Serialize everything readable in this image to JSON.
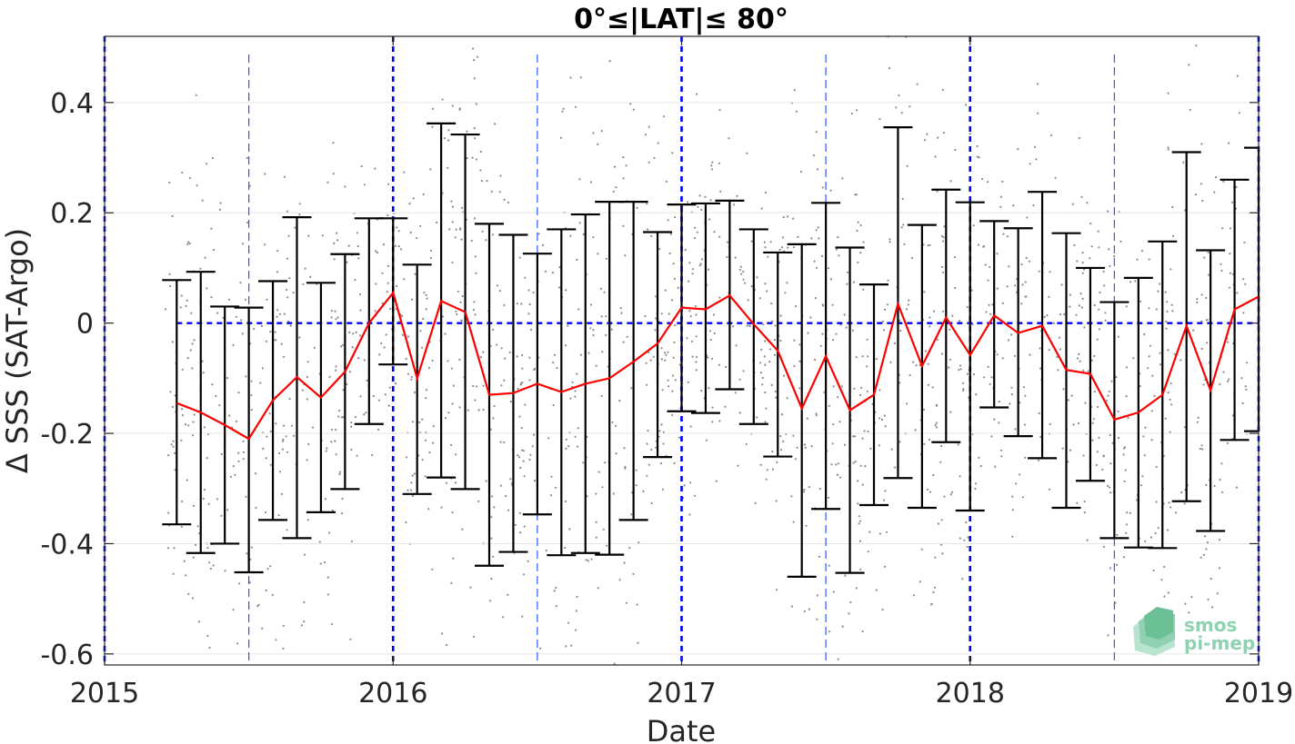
{
  "chart_data": {
    "type": "line",
    "title": "0°≤|LAT|≤ 80°",
    "xlabel": "Date",
    "ylabel": "Δ SSS (SAT-Argo)",
    "xlim": [
      "2015-01-01",
      "2019-01-01"
    ],
    "ylim": [
      -0.62,
      0.52
    ],
    "x_ticks": [
      "2015",
      "2016",
      "2017",
      "2018",
      "2019"
    ],
    "y_ticks": [
      -0.6,
      -0.4,
      -0.2,
      0,
      0.2,
      0.4
    ],
    "y_tick_labels": [
      "-0.6",
      "-0.4",
      "-0.2",
      "0",
      "0.2",
      "0.4"
    ],
    "grid": true,
    "reference_line": {
      "y": 0,
      "style": "dashed",
      "color": "#0000ff"
    },
    "year_lines": [
      "2015-01-01",
      "2016-01-01",
      "2017-01-01",
      "2018-01-01",
      "2019-01-01"
    ],
    "half_year_lines": [
      "2015-07-01",
      "2016-07-01",
      "2017-07-01",
      "2018-07-01"
    ],
    "colors": {
      "mean_line": "#ff0000",
      "error_bars": "#000000",
      "scatter": "#8a8a8a",
      "reference": "#0000ff",
      "half_year": "#3355ff",
      "grid": "#e6e6e6"
    },
    "series": [
      {
        "role": "monthly mean ± std",
        "x": [
          "2015-04",
          "2015-05",
          "2015-06",
          "2015-07",
          "2015-08",
          "2015-09",
          "2015-10",
          "2015-11",
          "2015-12",
          "2016-01",
          "2016-02",
          "2016-03",
          "2016-04",
          "2016-05",
          "2016-06",
          "2016-07",
          "2016-08",
          "2016-09",
          "2016-10",
          "2016-11",
          "2016-12",
          "2017-01",
          "2017-02",
          "2017-03",
          "2017-04",
          "2017-05",
          "2017-06",
          "2017-07",
          "2017-08",
          "2017-09",
          "2017-10",
          "2017-11",
          "2017-12",
          "2018-01",
          "2018-02",
          "2018-03",
          "2018-04",
          "2018-05",
          "2018-06",
          "2018-07",
          "2018-08",
          "2018-09",
          "2018-10",
          "2018-11",
          "2018-12"
        ],
        "mean": [
          -0.145,
          -0.162,
          -0.185,
          -0.21,
          -0.14,
          -0.098,
          -0.135,
          -0.088,
          0.0,
          0.055,
          -0.1,
          0.04,
          0.02,
          -0.13,
          -0.127,
          -0.11,
          -0.125,
          -0.11,
          -0.1,
          -0.07,
          -0.037,
          0.028,
          0.025,
          0.05,
          -0.002,
          -0.05,
          -0.155,
          -0.06,
          -0.158,
          -0.13,
          0.035,
          -0.078,
          0.01,
          -0.058,
          0.014,
          -0.018,
          -0.005,
          -0.085,
          -0.092,
          -0.175,
          -0.162,
          -0.13,
          -0.005,
          -0.122,
          0.025
        ],
        "upper": [
          0.078,
          0.093,
          0.03,
          0.028,
          0.076,
          0.192,
          0.073,
          0.125,
          0.19,
          0.19,
          0.106,
          0.362,
          0.342,
          0.18,
          0.16,
          0.126,
          0.17,
          0.197,
          0.22,
          0.22,
          0.165,
          0.215,
          0.217,
          0.222,
          0.17,
          0.128,
          0.143,
          0.218,
          0.137,
          0.07,
          0.355,
          0.178,
          0.242,
          0.219,
          0.185,
          0.172,
          0.238,
          0.163,
          0.1,
          0.038,
          0.082,
          0.148,
          0.31,
          0.132,
          0.26
        ],
        "lower": [
          -0.365,
          -0.417,
          -0.4,
          -0.452,
          -0.357,
          -0.39,
          -0.343,
          -0.301,
          -0.183,
          -0.075,
          -0.31,
          -0.28,
          -0.301,
          -0.44,
          -0.415,
          -0.347,
          -0.421,
          -0.417,
          -0.42,
          -0.357,
          -0.243,
          -0.16,
          -0.163,
          -0.12,
          -0.183,
          -0.242,
          -0.46,
          -0.337,
          -0.453,
          -0.33,
          -0.281,
          -0.335,
          -0.216,
          -0.34,
          -0.153,
          -0.205,
          -0.245,
          -0.335,
          -0.286,
          -0.39,
          -0.407,
          -0.408,
          -0.323,
          -0.377,
          -0.212
        ]
      },
      {
        "role": "trailing point",
        "x": [
          "2019-01"
        ],
        "mean": [
          0.048
        ],
        "upper": [
          0.318
        ],
        "lower": [
          -0.196
        ]
      }
    ]
  },
  "logo": {
    "line1": "smos",
    "line2": "pi-mep"
  }
}
